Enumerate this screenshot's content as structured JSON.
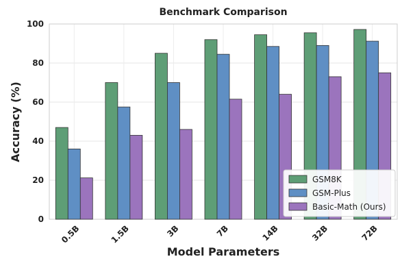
{
  "chart_data": {
    "type": "bar",
    "title": "Benchmark Comparison",
    "xlabel": "Model Parameters",
    "ylabel": "Accuracy (%)",
    "categories": [
      "0.5B",
      "1.5B",
      "3B",
      "7B",
      "14B",
      "32B",
      "72B"
    ],
    "series": [
      {
        "name": "GSM8K",
        "color": "#5e9e76",
        "values": [
          47,
          70,
          85,
          92,
          94.5,
          95.5,
          97.2
        ]
      },
      {
        "name": "GSM-Plus",
        "color": "#5f8fc4",
        "values": [
          36,
          57.5,
          70,
          84.5,
          88.5,
          89,
          91.2
        ]
      },
      {
        "name": "Basic-Math (Ours)",
        "color": "#9b74bd",
        "values": [
          21.2,
          43,
          46,
          61.5,
          64,
          73,
          75
        ]
      }
    ],
    "ylim": [
      0,
      100
    ],
    "yticks": [
      0,
      20,
      40,
      60,
      80,
      100
    ],
    "grid": true,
    "legend": "bottom-right"
  }
}
